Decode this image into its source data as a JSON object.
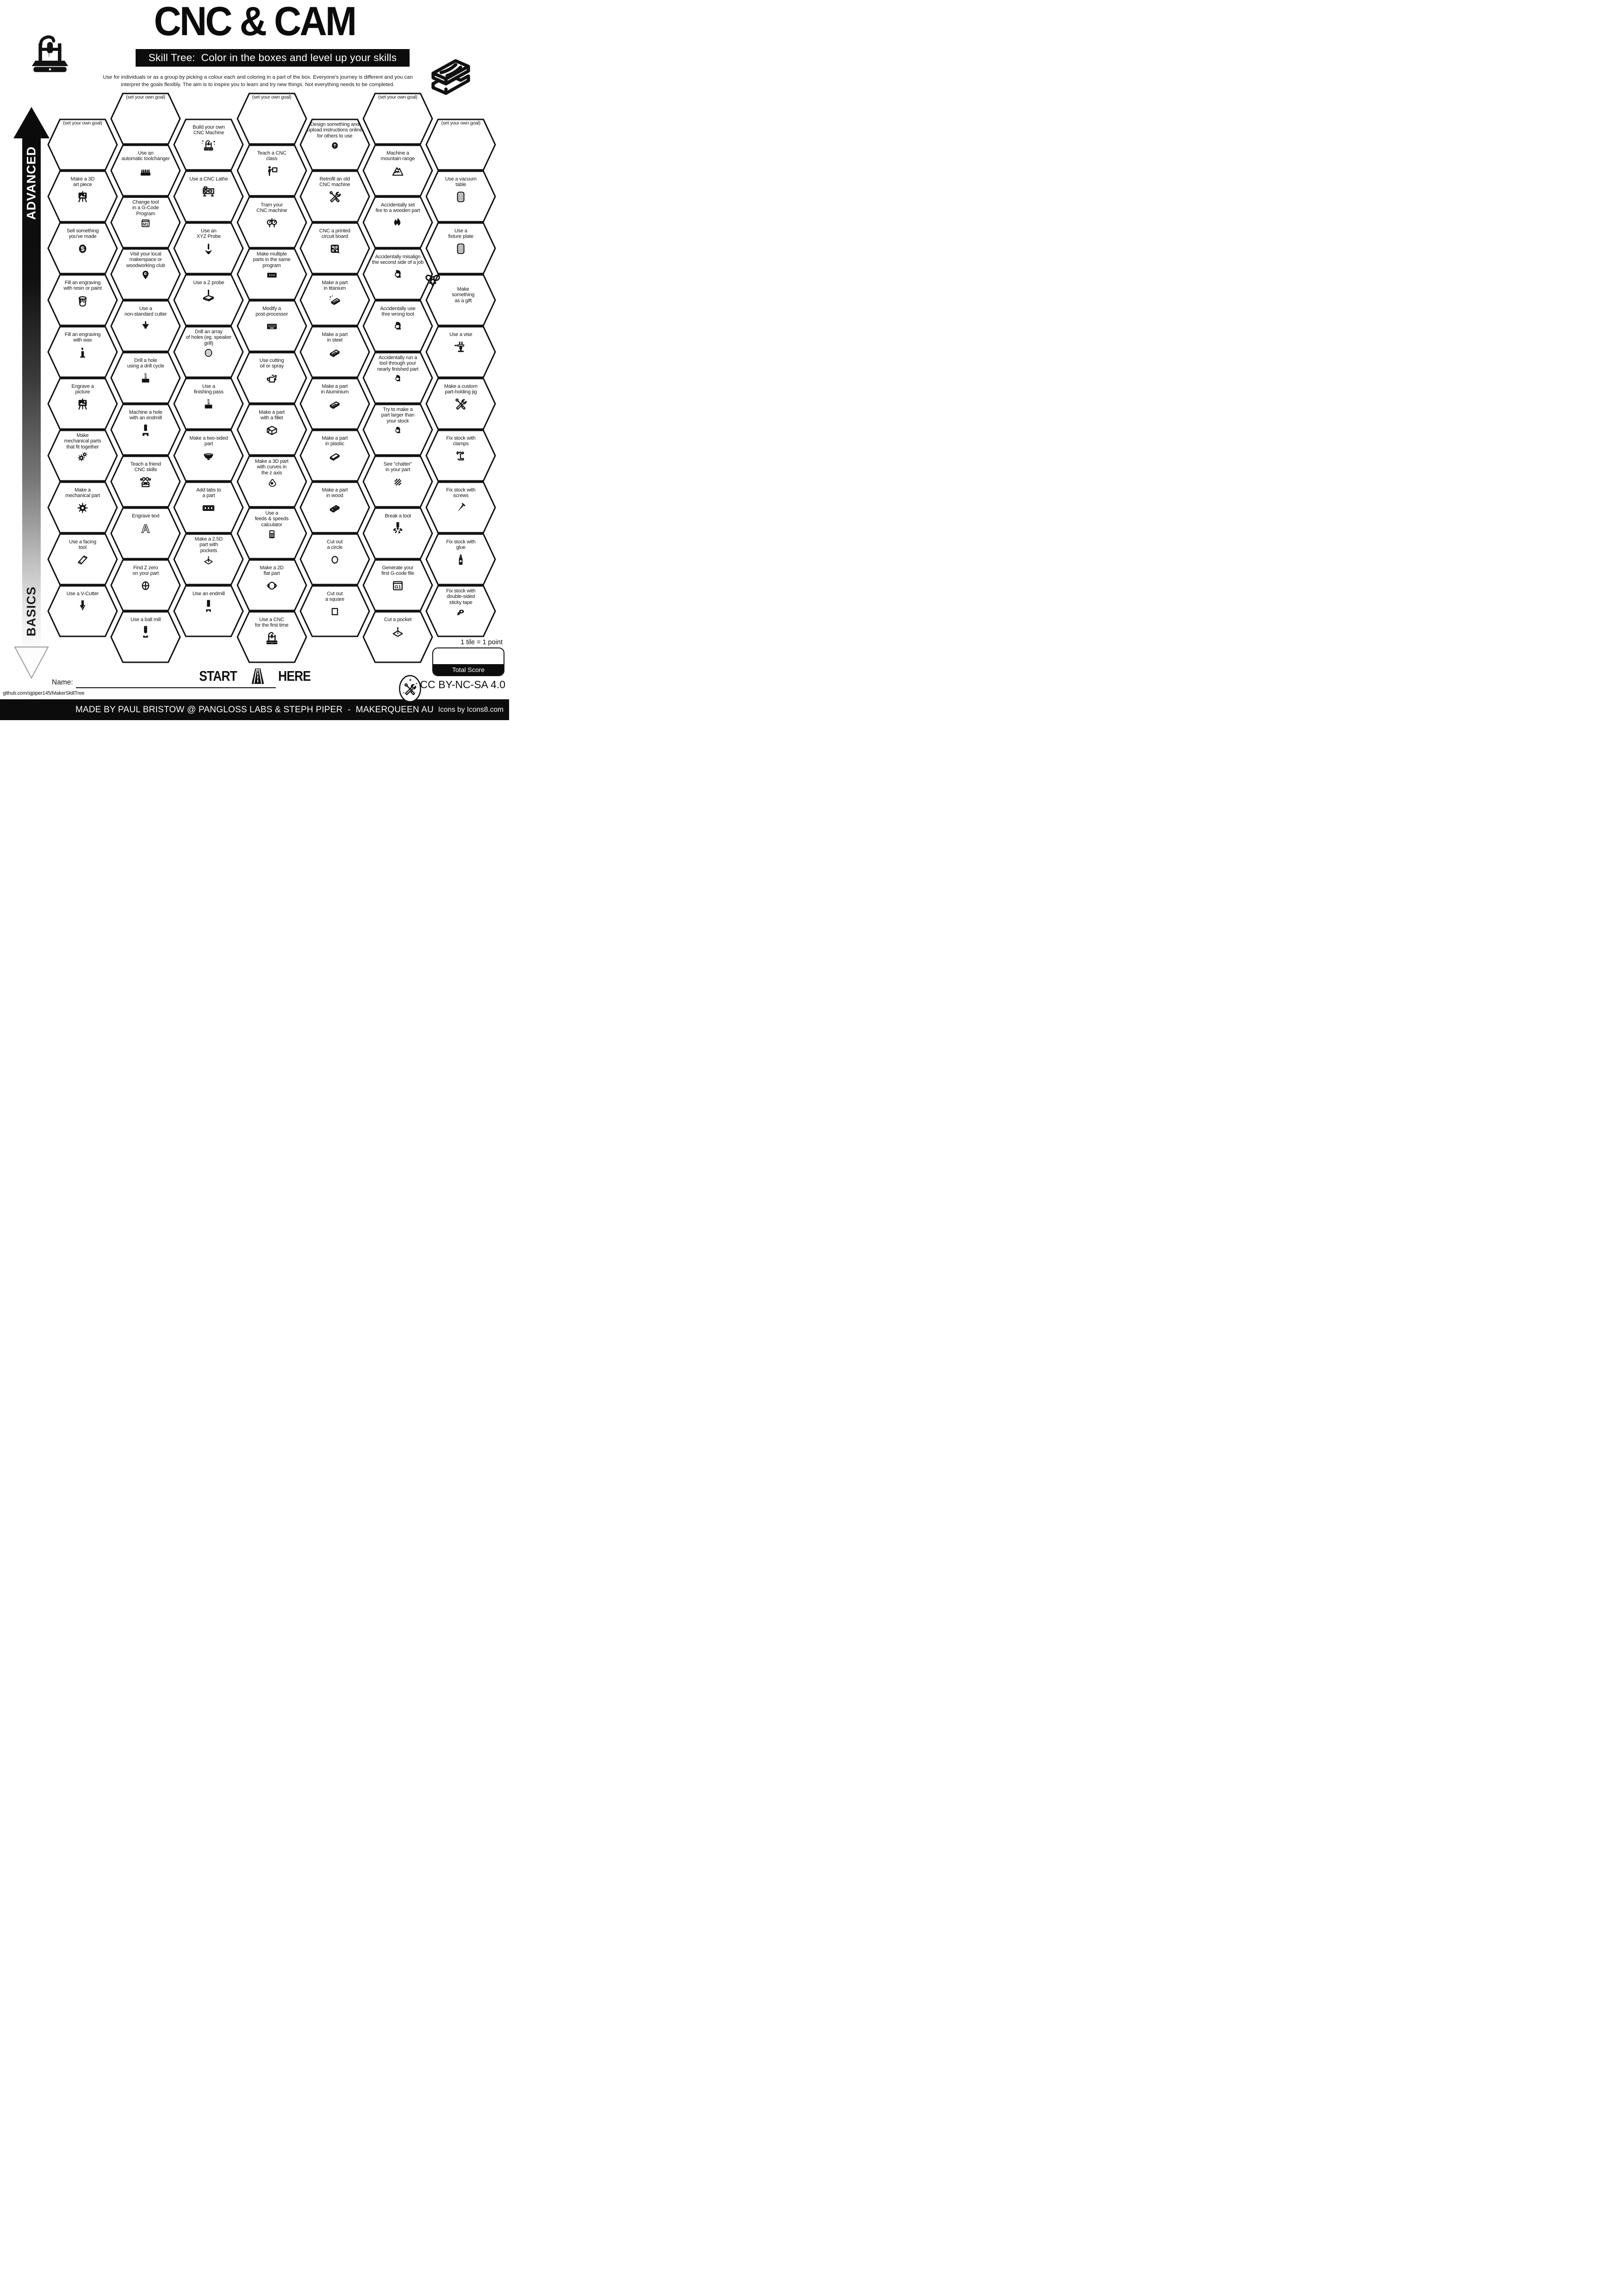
{
  "title": "CNC & CAM",
  "subtitle": "Skill Tree:  Color in the boxes and level up your skills",
  "description": "Use for individuals or as a group by picking a colour each and coloring in a part of the box.  Everyone's journey is different and you can\ninterpret the goals flexibly.  The aim is to inspire you to learn and try new things. Not everything needs to be completed.",
  "axis": {
    "advanced": "ADVANCED",
    "basics": "BASICS"
  },
  "start": {
    "start": "START",
    "here": "HERE"
  },
  "name_label": "Name:",
  "github": "github.com/sjpiper145/MakerSkillTree",
  "scoring": {
    "tile_note": "1 tile = 1 point",
    "total_label": "Total Score"
  },
  "license": "CC BY-NC-SA 4.0",
  "footer": {
    "credit": "MADE BY PAUL BRISTOW @ PANGLOSS LABS & STEPH PIPER  -  MAKERQUEEN AU",
    "icons_credit": "Icons by Icons8.com"
  },
  "icon_glyph_text": {
    "m1": "M1",
    "g1": "G1",
    "dollar": "$",
    "engrave_letter": "A"
  },
  "hex_columns": [
    {
      "col": 0,
      "hexes": [
        {
          "label": "(set your own goal)",
          "icon": null,
          "goal": true
        },
        {
          "label": "Make a 3D\nart piece",
          "icon": "easel"
        },
        {
          "label": "Sell something\nyou've made",
          "icon": "dollar"
        },
        {
          "label": "Fill an engraving\nwith resin or paint",
          "icon": "paint-bucket"
        },
        {
          "label": "Fill an engraving\nwith wax",
          "icon": "candle"
        },
        {
          "label": "Engrave a\npicture",
          "icon": "easel"
        },
        {
          "label": "Make\nmechanical parts\nthat fit together",
          "icon": "gears"
        },
        {
          "label": "Make a\nmechanical part",
          "icon": "gear"
        },
        {
          "label": "Use a facing\ntool",
          "icon": "facing-tool"
        },
        {
          "label": "Use a V-Cutter",
          "icon": "v-cutter"
        }
      ]
    },
    {
      "col": 1,
      "hexes": [
        {
          "label": "(set your own goal)",
          "icon": null,
          "goal": true
        },
        {
          "label": "Use an\nautomatic toolchanger",
          "icon": "toolchanger"
        },
        {
          "label": "Change tool\nin a G-Code\nProgram",
          "icon": "m1-code"
        },
        {
          "label": "Visit your local\nmakerspace or\nwoodworking club",
          "icon": "location-pin"
        },
        {
          "label": "Use a\nnon-standard cutter",
          "icon": "cutter"
        },
        {
          "label": "Drill a hole\nusing a drill cycle",
          "icon": "drill-cycle"
        },
        {
          "label": "Machine a hole\nwith an endmill",
          "icon": "endmill-hole"
        },
        {
          "label": "Teach a friend\nCNC skills",
          "icon": "friends-laptop"
        },
        {
          "label": "Engrave text",
          "icon": "letter-a"
        },
        {
          "label": "Find Z zero\non your part",
          "icon": "crosshair"
        },
        {
          "label": "Use a ball mill",
          "icon": "ball-mill"
        }
      ]
    },
    {
      "col": 2,
      "hexes": [
        {
          "label": "Build your own\nCNC Machine",
          "icon": "cnc-sparkles"
        },
        {
          "label": "Use a CNC Lathe",
          "icon": "lathe"
        },
        {
          "label": "Use an\nXYZ Probe",
          "icon": "xyz-probe"
        },
        {
          "label": "Use a Z probe",
          "icon": "z-probe"
        },
        {
          "label": "Drill an array\nof holes (eg. speaker\ngrill)",
          "icon": "hole-grill"
        },
        {
          "label": "Use a\nfinishing pass",
          "icon": "finishing-pass"
        },
        {
          "label": "Make a two-sided\npart",
          "icon": "bowl"
        },
        {
          "label": "Add tabs to\na part",
          "icon": "tabs"
        },
        {
          "label": "Make a 2.5D\npart with\npockets",
          "icon": "pocket-bit"
        },
        {
          "label": "Use an endmill",
          "icon": "endmill"
        }
      ]
    },
    {
      "col": 3,
      "hexes": [
        {
          "label": "(set your own goal)",
          "icon": null,
          "goal": true
        },
        {
          "label": "Teach a CNC\nclass",
          "icon": "teacher-board"
        },
        {
          "label": "Tram your\nCNC machine",
          "icon": "gauges"
        },
        {
          "label": "Make multiple\nparts in the same\nprogram",
          "icon": "multi-parts"
        },
        {
          "label": "Modify a\npost-processor",
          "icon": "keyboard"
        },
        {
          "label": "Use cutting\noil or spray",
          "icon": "oil-can"
        },
        {
          "label": "Make a part\nwith a fillet",
          "icon": "fillet-block"
        },
        {
          "label": "Make a 3D part\nwith curves in\nthe z axis",
          "icon": "z-curve"
        },
        {
          "label": "Use a\nfeeds & speeds\ncalculator",
          "icon": "calculator"
        },
        {
          "label": "Make a 2D\nflat part",
          "icon": "gasket"
        },
        {
          "label": "Use a CNC\nfor the first time",
          "icon": "cnc-machine"
        }
      ]
    },
    {
      "col": 4,
      "hexes": [
        {
          "label": "Design something and\nupload instructions online\nfor others to use",
          "icon": "upload"
        },
        {
          "label": "Retrofit an old\nCNC machine",
          "icon": "crossed-tools"
        },
        {
          "label": "CNC a printed\ncircuit board",
          "icon": "pcb"
        },
        {
          "label": "Make a part\nin titanium",
          "icon": "titanium-bar"
        },
        {
          "label": "Make a part\nin steel",
          "icon": "steel-bar"
        },
        {
          "label": "Make a part\nin Aluminium",
          "icon": "aluminium-bar"
        },
        {
          "label": "Make a part\nin plastic",
          "icon": "plain-bar"
        },
        {
          "label": "Make a part\nin wood",
          "icon": "wood-plank"
        },
        {
          "label": "Cut out\na circle",
          "icon": "circle"
        },
        {
          "label": "Cut out\na square",
          "icon": "square"
        }
      ]
    },
    {
      "col": 5,
      "hexes": [
        {
          "label": "(set your own goal)",
          "icon": null,
          "goal": true
        },
        {
          "label": "Machine a\nmountain range",
          "icon": "mountain"
        },
        {
          "label": "Accidentally set\nfire to a wooden part",
          "icon": "fire"
        },
        {
          "label": "Accidentally misalign\nthe second side of a job",
          "icon": "facepalm"
        },
        {
          "label": "Accidentally use\nthre wrong tool",
          "icon": "facepalm"
        },
        {
          "label": "Accidentally run a\ntool through your\nnearly finished part",
          "icon": "facepalm"
        },
        {
          "label": "Try to make a\npart larger than\nyour stock",
          "icon": "facepalm"
        },
        {
          "label": "See \"chatter\"\nin your part",
          "icon": "chatter"
        },
        {
          "label": "Break a tool",
          "icon": "break-tool"
        },
        {
          "label": "Generate your\nfirst G-code file",
          "icon": "g1-code"
        },
        {
          "label": "Cut a pocket",
          "icon": "cut-pocket"
        }
      ]
    },
    {
      "col": 6,
      "hexes": [
        {
          "label": "(set your own goal)",
          "icon": null,
          "goal": true
        },
        {
          "label": "Use a vacuum\ntable",
          "icon": "vacuum-table"
        },
        {
          "label": "Use a\nfixture plate",
          "icon": "fixture-plate"
        },
        {
          "label": "Make\nsomething\nas a gift",
          "icon": "gift-bow"
        },
        {
          "label": "Use a vise",
          "icon": "vise"
        },
        {
          "label": "Make a custom\npart-holding jig",
          "icon": "crossed-tools"
        },
        {
          "label": "Fix stock with\nclamps",
          "icon": "clamp"
        },
        {
          "label": "Fix stock with\nscrews",
          "icon": "nail"
        },
        {
          "label": "Fix stock with\nglue",
          "icon": "glue"
        },
        {
          "label": "Fix stock with\ndouble-sided\nsticky tape",
          "icon": "tape"
        }
      ]
    }
  ]
}
